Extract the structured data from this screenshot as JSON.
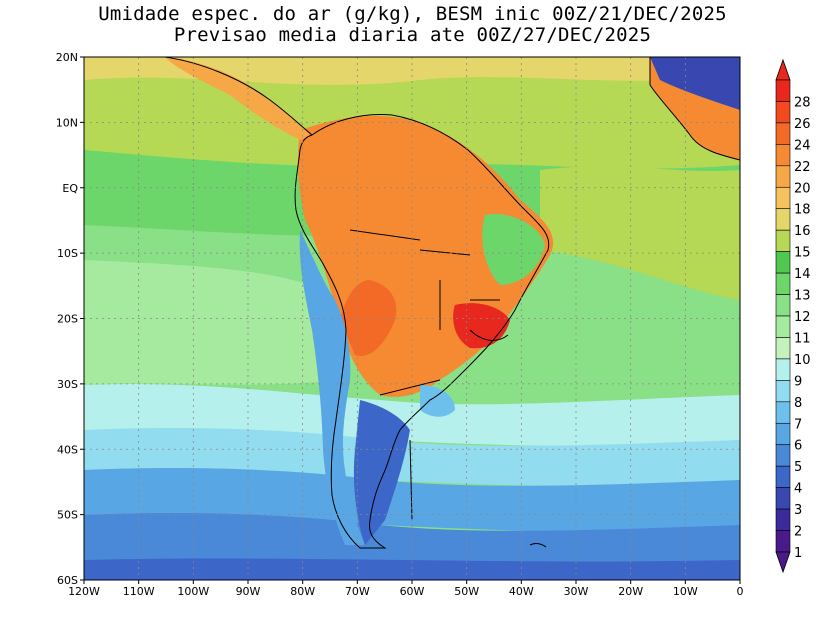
{
  "title_line1": "Umidade espec. do ar (g/kg), BESM inic 00Z/21/DEC/2025",
  "title_line2": "Previsao media diaria ate 00Z/27/DEC/2025",
  "map": {
    "lon_min": -120,
    "lon_max": 0,
    "lat_min": -60,
    "lat_max": 20,
    "lat_labels": [
      {
        "lat": 20,
        "label": "20N"
      },
      {
        "lat": 10,
        "label": "10N"
      },
      {
        "lat": 0,
        "label": "EQ"
      },
      {
        "lat": -10,
        "label": "10S"
      },
      {
        "lat": -20,
        "label": "20S"
      },
      {
        "lat": -30,
        "label": "30S"
      },
      {
        "lat": -40,
        "label": "40S"
      },
      {
        "lat": -50,
        "label": "50S"
      },
      {
        "lat": -60,
        "label": "60S"
      }
    ],
    "lon_labels": [
      {
        "lon": -120,
        "label": "120W"
      },
      {
        "lon": -110,
        "label": "110W"
      },
      {
        "lon": -100,
        "label": "100W"
      },
      {
        "lon": -90,
        "label": "90W"
      },
      {
        "lon": -80,
        "label": "80W"
      },
      {
        "lon": -70,
        "label": "70W"
      },
      {
        "lon": -60,
        "label": "60W"
      },
      {
        "lon": -50,
        "label": "50W"
      },
      {
        "lon": -40,
        "label": "40W"
      },
      {
        "lon": -30,
        "label": "30W"
      },
      {
        "lon": -20,
        "label": "20W"
      },
      {
        "lon": -10,
        "label": "10W"
      },
      {
        "lon": 0,
        "label": "0"
      }
    ],
    "grid": true
  },
  "colorbar": {
    "levels": [
      {
        "label": "28",
        "color": "#e8281e"
      },
      {
        "label": "26",
        "color": "#f04a1e"
      },
      {
        "label": "24",
        "color": "#f26a26"
      },
      {
        "label": "22",
        "color": "#f58a32"
      },
      {
        "label": "20",
        "color": "#f7a846"
      },
      {
        "label": "18",
        "color": "#f6c25e"
      },
      {
        "label": "16",
        "color": "#e5d66c"
      },
      {
        "label": "15",
        "color": "#b5d855"
      },
      {
        "label": "14",
        "color": "#50c850"
      },
      {
        "label": "13",
        "color": "#6cd66a"
      },
      {
        "label": "12",
        "color": "#8ae086"
      },
      {
        "label": "11",
        "color": "#a6eaa0"
      },
      {
        "label": "10",
        "color": "#c4f2bc"
      },
      {
        "label": "9",
        "color": "#b6f0ec"
      },
      {
        "label": "8",
        "color": "#92dcf0"
      },
      {
        "label": "7",
        "color": "#6ec0ec"
      },
      {
        "label": "6",
        "color": "#58a6e4"
      },
      {
        "label": "5",
        "color": "#4a88d8"
      },
      {
        "label": "4",
        "color": "#3c66c8"
      },
      {
        "label": "3",
        "color": "#3848b0"
      },
      {
        "label": "2",
        "color": "#3a2a9c"
      },
      {
        "label": "1",
        "color": "#4a1a8a"
      }
    ],
    "top_arrow_color": "#e8281e",
    "bottom_arrow_color": "#4a1a8a"
  }
}
